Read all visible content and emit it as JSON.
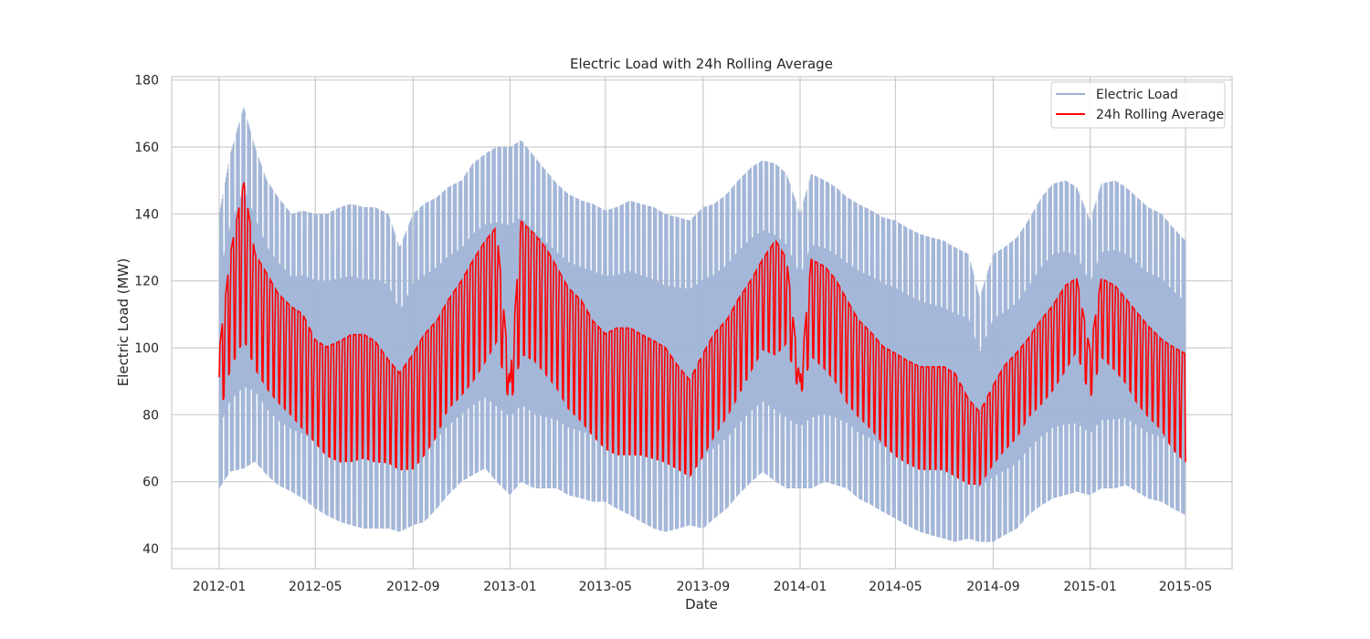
{
  "chart_data": {
    "type": "line",
    "title": "Electric Load with 24h Rolling Average",
    "xlabel": "Date",
    "ylabel": "Electric Load (MW)",
    "x_range": [
      "2012-01-01",
      "2015-05-01"
    ],
    "ylim": [
      34,
      181
    ],
    "x_ticks": [
      "2012-01",
      "2012-05",
      "2012-09",
      "2013-01",
      "2013-05",
      "2013-09",
      "2014-01",
      "2014-05",
      "2014-09",
      "2015-01",
      "2015-05"
    ],
    "y_ticks": [
      40,
      60,
      80,
      100,
      120,
      140,
      160,
      180
    ],
    "grid": true,
    "legend_position": "top-right",
    "series": [
      {
        "name": "Electric Load",
        "color": "#9fb3d6",
        "note_style": "thin line, alpha 0.5",
        "x": [
          "2012-01-01",
          "2012-01-15",
          "2012-02-01",
          "2012-02-15",
          "2012-03-01",
          "2012-03-15",
          "2012-04-01",
          "2012-04-15",
          "2012-05-01",
          "2012-05-15",
          "2012-06-01",
          "2012-06-15",
          "2012-07-01",
          "2012-07-15",
          "2012-08-01",
          "2012-08-15",
          "2012-09-01",
          "2012-09-15",
          "2012-10-01",
          "2012-10-15",
          "2012-11-01",
          "2012-11-15",
          "2012-12-01",
          "2012-12-15",
          "2013-01-01",
          "2013-01-15",
          "2013-02-01",
          "2013-02-15",
          "2013-03-01",
          "2013-03-15",
          "2013-04-01",
          "2013-04-15",
          "2013-05-01",
          "2013-05-15",
          "2013-06-01",
          "2013-06-15",
          "2013-07-01",
          "2013-07-15",
          "2013-08-01",
          "2013-08-15",
          "2013-09-01",
          "2013-09-15",
          "2013-10-01",
          "2013-10-15",
          "2013-11-01",
          "2013-11-15",
          "2013-12-01",
          "2013-12-15",
          "2014-01-01",
          "2014-01-15",
          "2014-02-01",
          "2014-02-15",
          "2014-03-01",
          "2014-03-15",
          "2014-04-01",
          "2014-04-15",
          "2014-05-01",
          "2014-05-15",
          "2014-06-01",
          "2014-06-15",
          "2014-07-01",
          "2014-07-15",
          "2014-08-01",
          "2014-08-15",
          "2014-09-01",
          "2014-09-15",
          "2014-10-01",
          "2014-10-15",
          "2014-11-01",
          "2014-11-15",
          "2014-12-01",
          "2014-12-15",
          "2015-01-01",
          "2015-01-15",
          "2015-02-01",
          "2015-02-15",
          "2015-03-01",
          "2015-03-15",
          "2015-04-01",
          "2015-04-15",
          "2015-05-01"
        ],
        "max": [
          140,
          158,
          172,
          160,
          150,
          145,
          140,
          141,
          140,
          140,
          142,
          143,
          142,
          142,
          140,
          130,
          140,
          143,
          145,
          148,
          150,
          155,
          158,
          160,
          160,
          162,
          157,
          153,
          149,
          146,
          144,
          143,
          141,
          142,
          144,
          143,
          142,
          140,
          139,
          138,
          142,
          143,
          146,
          150,
          154,
          156,
          155,
          152,
          140,
          152,
          150,
          148,
          145,
          143,
          141,
          139,
          138,
          136,
          134,
          133,
          132,
          130,
          128,
          115,
          128,
          130,
          133,
          138,
          145,
          149,
          150,
          148,
          138,
          149,
          150,
          148,
          145,
          142,
          140,
          136,
          132
        ],
        "min": [
          58,
          63,
          64,
          66,
          62,
          59,
          57,
          55,
          52,
          50,
          48,
          47,
          46,
          46,
          46,
          45,
          47,
          48,
          52,
          56,
          60,
          62,
          64,
          60,
          56,
          60,
          58,
          58,
          58,
          56,
          55,
          54,
          54,
          52,
          50,
          48,
          46,
          45,
          46,
          47,
          46,
          49,
          52,
          56,
          60,
          63,
          60,
          58,
          58,
          58,
          60,
          59,
          58,
          55,
          53,
          51,
          49,
          47,
          45,
          44,
          43,
          42,
          43,
          42,
          42,
          44,
          46,
          50,
          53,
          55,
          56,
          57,
          56,
          58,
          58,
          59,
          57,
          55,
          54,
          52,
          50
        ]
      },
      {
        "name": "24h Rolling Average",
        "color": "#ff0000",
        "x": [
          "2012-01-01",
          "2012-01-15",
          "2012-02-01",
          "2012-02-15",
          "2012-03-01",
          "2012-03-15",
          "2012-04-01",
          "2012-04-15",
          "2012-05-01",
          "2012-05-15",
          "2012-06-01",
          "2012-06-15",
          "2012-07-01",
          "2012-07-15",
          "2012-08-01",
          "2012-08-15",
          "2012-09-01",
          "2012-09-15",
          "2012-10-01",
          "2012-10-15",
          "2012-11-01",
          "2012-11-15",
          "2012-12-01",
          "2012-12-15",
          "2013-01-01",
          "2013-01-15",
          "2013-02-01",
          "2013-02-15",
          "2013-03-01",
          "2013-03-15",
          "2013-04-01",
          "2013-04-15",
          "2013-05-01",
          "2013-05-15",
          "2013-06-01",
          "2013-06-15",
          "2013-07-01",
          "2013-07-15",
          "2013-08-01",
          "2013-08-15",
          "2013-09-01",
          "2013-09-15",
          "2013-10-01",
          "2013-10-15",
          "2013-11-01",
          "2013-11-15",
          "2013-12-01",
          "2013-12-15",
          "2014-01-01",
          "2014-01-15",
          "2014-02-01",
          "2014-02-15",
          "2014-03-01",
          "2014-03-15",
          "2014-04-01",
          "2014-04-15",
          "2014-05-01",
          "2014-05-15",
          "2014-06-01",
          "2014-06-15",
          "2014-07-01",
          "2014-07-15",
          "2014-08-01",
          "2014-08-15",
          "2014-09-01",
          "2014-09-15",
          "2014-10-01",
          "2014-10-15",
          "2014-11-01",
          "2014-11-15",
          "2014-12-01",
          "2014-12-15",
          "2015-01-01",
          "2015-01-15",
          "2015-02-01",
          "2015-02-15",
          "2015-03-01",
          "2015-03-15",
          "2015-04-01",
          "2015-04-15",
          "2015-05-01"
        ],
        "max": [
          100,
          130,
          152,
          130,
          124,
          118,
          114,
          112,
          104,
          102,
          104,
          106,
          106,
          104,
          98,
          94,
          100,
          106,
          110,
          116,
          122,
          128,
          134,
          138,
          90,
          140,
          136,
          132,
          126,
          120,
          116,
          110,
          106,
          108,
          108,
          106,
          104,
          102,
          96,
          92,
          100,
          106,
          110,
          116,
          122,
          128,
          134,
          128,
          90,
          128,
          126,
          122,
          116,
          110,
          106,
          102,
          100,
          98,
          96,
          96,
          96,
          94,
          86,
          82,
          90,
          96,
          100,
          104,
          110,
          114,
          120,
          122,
          100,
          122,
          120,
          116,
          112,
          108,
          104,
          102,
          100
        ],
        "min": [
          78,
          92,
          100,
          92,
          86,
          82,
          78,
          74,
          70,
          66,
          64,
          64,
          65,
          64,
          64,
          62,
          62,
          66,
          72,
          80,
          84,
          88,
          94,
          100,
          82,
          96,
          94,
          90,
          86,
          80,
          76,
          72,
          68,
          66,
          66,
          66,
          65,
          64,
          62,
          60,
          66,
          72,
          78,
          84,
          92,
          98,
          96,
          100,
          85,
          96,
          92,
          88,
          82,
          78,
          74,
          70,
          66,
          64,
          62,
          62,
          62,
          60,
          58,
          58,
          64,
          68,
          72,
          78,
          82,
          86,
          92,
          98,
          84,
          96,
          92,
          88,
          82,
          78,
          74,
          68,
          64
        ]
      }
    ]
  }
}
